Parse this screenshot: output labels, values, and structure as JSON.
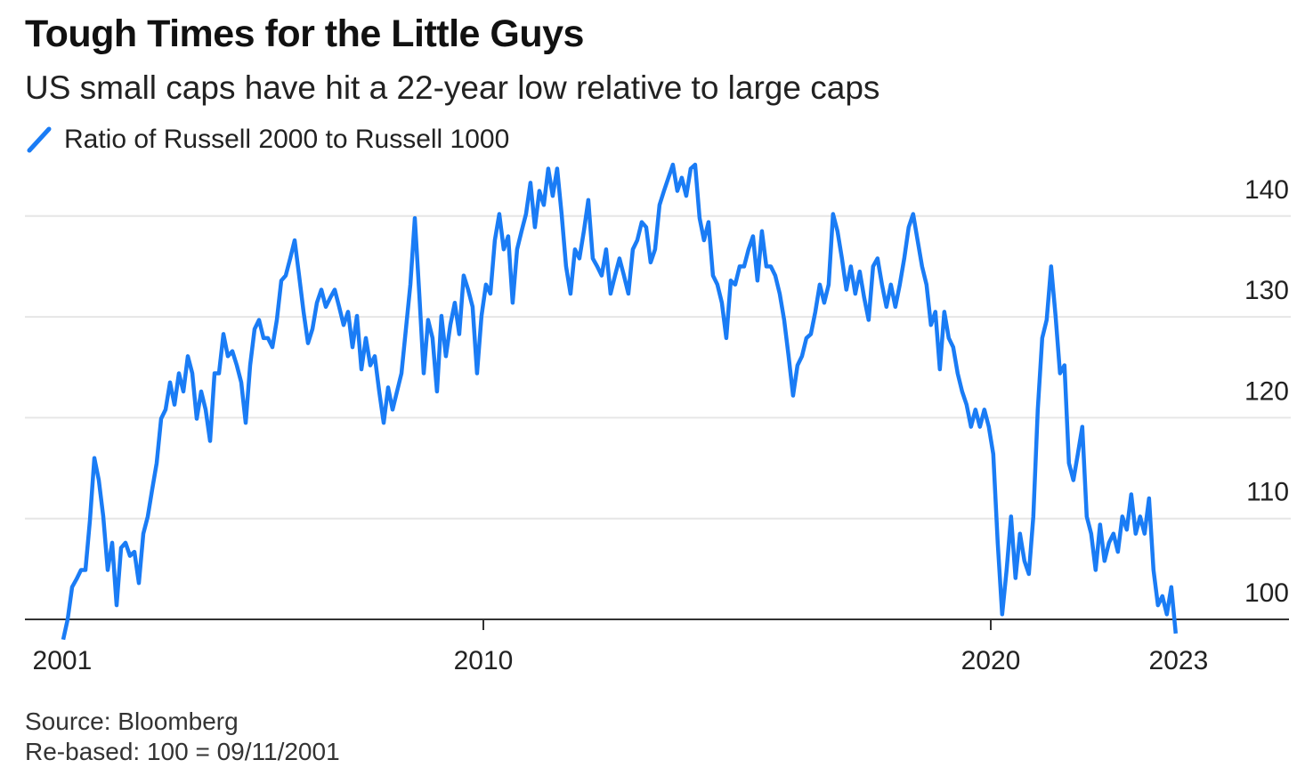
{
  "chart_data": {
    "type": "line",
    "title": "Tough Times for the Little Guys",
    "subtitle": "US small caps have hit a 22-year low relative to large caps",
    "legend": [
      {
        "name": "Ratio of Russell 2000 to Russell 1000",
        "color": "#1a7cf5"
      }
    ],
    "legend_placement": "top-left",
    "xlabel": "",
    "ylabel": "",
    "x_ticks": [
      {
        "value": 2001.7,
        "label": "2001"
      },
      {
        "value": 2010,
        "label": "2010"
      },
      {
        "value": 2020,
        "label": "2020"
      },
      {
        "value": 2023.7,
        "label": "2023"
      }
    ],
    "y_ticks": [
      100,
      110,
      120,
      130,
      140
    ],
    "ylim": [
      97,
      146
    ],
    "xlim": [
      2001.0,
      2025.7
    ],
    "grid": true,
    "series": [
      {
        "name": "Ratio of Russell 2000 to Russell 1000",
        "x_start": 2001.72,
        "x_step": 0.0877,
        "values": [
          98.0,
          100.0,
          103.2,
          104.0,
          104.9,
          104.9,
          109.8,
          116.0,
          113.8,
          110.2,
          104.9,
          107.6,
          101.4,
          107.1,
          107.6,
          106.3,
          106.7,
          103.6,
          108.5,
          110.2,
          112.9,
          115.5,
          119.9,
          120.8,
          123.5,
          121.3,
          124.4,
          122.6,
          126.1,
          124.4,
          119.9,
          122.6,
          120.8,
          117.7,
          124.4,
          124.4,
          128.3,
          126.1,
          126.6,
          125.2,
          123.5,
          119.5,
          125.2,
          128.8,
          129.7,
          127.9,
          127.9,
          127.0,
          129.7,
          133.6,
          134.1,
          135.8,
          137.6,
          134.1,
          130.5,
          127.4,
          128.8,
          131.4,
          132.7,
          131.0,
          131.9,
          132.7,
          131.0,
          129.2,
          130.5,
          127.0,
          130.1,
          124.8,
          127.9,
          125.2,
          126.1,
          122.6,
          119.5,
          123.0,
          120.8,
          122.6,
          124.4,
          128.8,
          133.2,
          139.8,
          132.3,
          124.4,
          129.7,
          127.9,
          122.6,
          130.1,
          126.1,
          129.2,
          131.4,
          128.3,
          134.1,
          132.7,
          131.0,
          124.4,
          130.1,
          133.2,
          132.3,
          137.6,
          140.2,
          136.7,
          138.0,
          131.4,
          136.7,
          138.5,
          140.2,
          143.3,
          138.9,
          142.5,
          141.1,
          144.7,
          142.0,
          144.7,
          140.2,
          135.0,
          132.3,
          136.7,
          135.8,
          138.5,
          141.6,
          135.8,
          135.0,
          134.1,
          136.7,
          132.3,
          134.1,
          135.8,
          134.1,
          132.3,
          136.7,
          137.6,
          139.4,
          138.9,
          135.4,
          136.7,
          141.1,
          142.5,
          143.8,
          145.1,
          142.5,
          143.8,
          142.0,
          144.7,
          145.1,
          139.8,
          137.6,
          139.4,
          134.1,
          133.2,
          131.4,
          127.9,
          133.6,
          133.2,
          135.0,
          135.0,
          136.7,
          138.0,
          133.6,
          138.5,
          135.0,
          135.0,
          134.1,
          132.3,
          129.7,
          126.1,
          122.2,
          125.2,
          126.1,
          127.9,
          128.3,
          130.5,
          133.2,
          131.4,
          133.2,
          140.2,
          138.5,
          135.8,
          132.7,
          135.0,
          132.3,
          134.5,
          131.9,
          129.7,
          135.0,
          135.8,
          133.2,
          131.0,
          133.2,
          131.0,
          133.2,
          135.8,
          138.9,
          140.2,
          137.6,
          135.0,
          133.2,
          129.2,
          130.5,
          124.8,
          130.5,
          127.9,
          127.0,
          124.4,
          122.6,
          121.3,
          119.1,
          120.8,
          119.1,
          120.8,
          119.1,
          116.4,
          107.6,
          100.5,
          104.9,
          110.2,
          104.1,
          108.5,
          105.8,
          104.5,
          110.2,
          120.8,
          127.9,
          129.7,
          135.0,
          130.1,
          124.4,
          125.2,
          115.5,
          113.8,
          116.4,
          119.1,
          110.2,
          108.5,
          104.9,
          109.4,
          105.8,
          107.6,
          108.5,
          106.7,
          110.2,
          108.9,
          112.4,
          108.5,
          110.2,
          108.5,
          112.0,
          104.9,
          101.4,
          102.3,
          100.5,
          103.2,
          98.6
        ]
      }
    ],
    "footnotes": {
      "source": "Source: Bloomberg",
      "note": "Re-based: 100 = 09/11/2001"
    }
  }
}
